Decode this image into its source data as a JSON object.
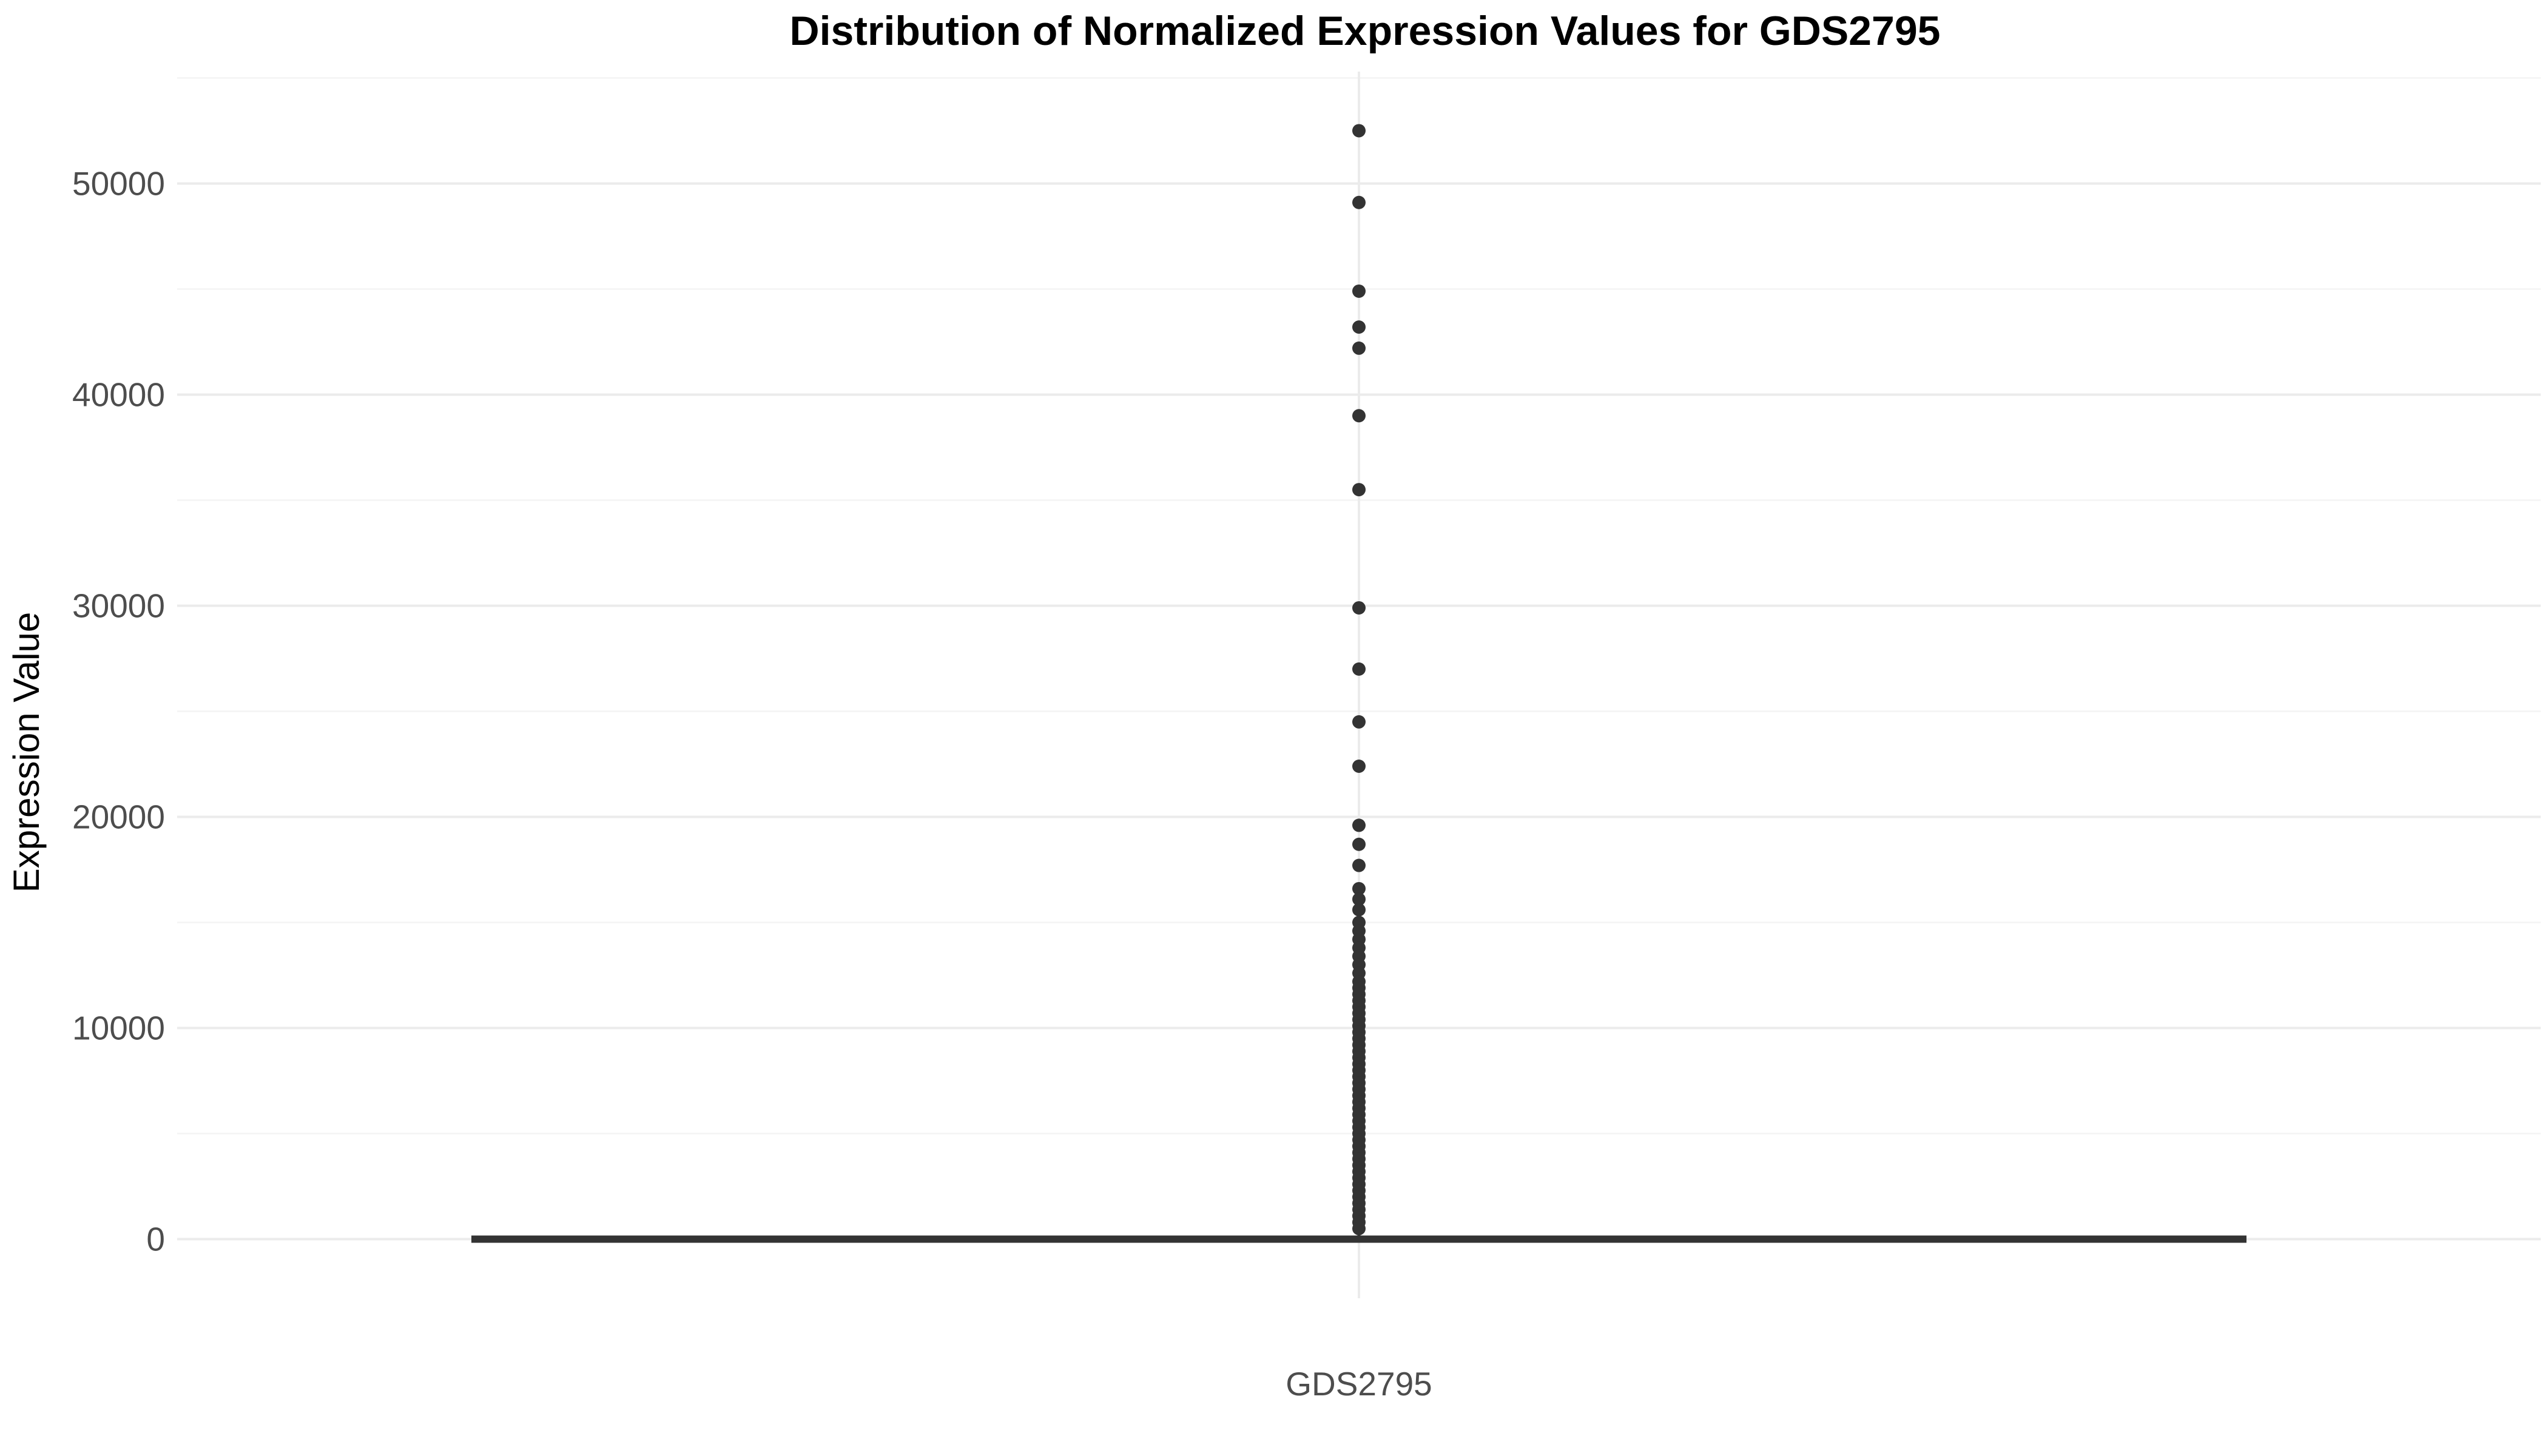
{
  "chart_data": {
    "type": "box",
    "title": "Distribution of Normalized Expression Values for GDS2795",
    "xlabel": "",
    "ylabel": "Expression Value",
    "categories": [
      "GDS2795"
    ],
    "ylim": [
      -2800,
      55300
    ],
    "y_ticks": [
      0,
      10000,
      20000,
      30000,
      40000,
      50000
    ],
    "y_tick_labels": [
      "0",
      "10000",
      "20000",
      "30000",
      "40000",
      "50000"
    ],
    "grid": true,
    "box": {
      "min": 0,
      "q1": 0,
      "median": 0,
      "q3": 0,
      "whisker_low": 0,
      "whisker_high": 300
    },
    "outliers": [
      52500,
      49100,
      44900,
      43200,
      42200,
      39000,
      35500,
      29900,
      27000,
      24500,
      22400,
      19600,
      18700,
      17700,
      16600,
      16100,
      15600,
      15000,
      14600,
      14200,
      13800,
      13400,
      13000,
      12600,
      12200,
      11900,
      11600,
      11300,
      11000,
      10700,
      10400,
      10100,
      9800,
      9500,
      9200,
      8900,
      8600,
      8300,
      8000,
      7700,
      7400,
      7100,
      6800,
      6500,
      6200,
      5900,
      5600,
      5300,
      5000,
      4700,
      4400,
      4100,
      3800,
      3500,
      3200,
      2900,
      2600,
      2300,
      2000,
      1700,
      1400,
      1100,
      800,
      500
    ],
    "colors": {
      "point": "#333333",
      "box_line": "#333333",
      "grid_major": "#ebebeb",
      "grid_minor": "#f4f4f4"
    }
  }
}
